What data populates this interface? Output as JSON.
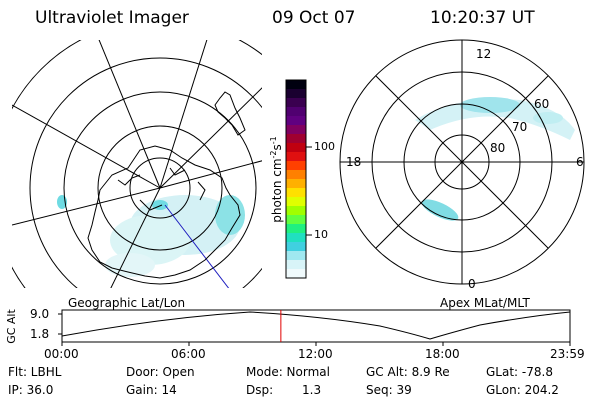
{
  "header": {
    "title": "Ultraviolet Imager",
    "date": "09 Oct 07",
    "time": "10:20:37 UT"
  },
  "colorbar": {
    "label": "photon cm",
    "label_exp": "-2",
    "label_unit2": "s",
    "label_exp2": "-1",
    "ticks": [
      "100",
      "10"
    ],
    "colors": [
      "#000010",
      "#1a0030",
      "#3a0050",
      "#500070",
      "#600080",
      "#800060",
      "#a00030",
      "#c00010",
      "#e01010",
      "#ff4000",
      "#ff8000",
      "#ffb000",
      "#ffe000",
      "#e0ff00",
      "#a0ff00",
      "#60ff40",
      "#20f080",
      "#20e0c0",
      "#40d0e0",
      "#a0e8f0",
      "#d8f4f8",
      "#f0fafc"
    ]
  },
  "left_panel": {
    "caption": "Geographic Lat/Lon"
  },
  "right_panel": {
    "caption": "Apex MLat/MLT",
    "lat_labels": [
      "60",
      "70",
      "80"
    ],
    "mlt_labels": {
      "top": "12",
      "bottom": "0",
      "left": "18",
      "right": "6"
    }
  },
  "timeline": {
    "ylabel": "GC Alt",
    "yticks": [
      "9.0",
      "1.8"
    ],
    "xticks": [
      "00:00",
      "06:00",
      "12:00",
      "18:00",
      "23:59"
    ],
    "marker_hours": 10.34
  },
  "info": {
    "flt": "Flt: LBHL",
    "ip": "IP: 36.0",
    "door": "Door: Open",
    "gain": "Gain: 14",
    "mode": "Mode: Normal",
    "dsp_label": "Dsp:",
    "dsp_value": "1.3",
    "gc_alt": "GC Alt: 8.9 Re",
    "seq": "Seq: 39",
    "glat": "GLat: -78.8",
    "glon": "GLon: 204.2"
  }
}
